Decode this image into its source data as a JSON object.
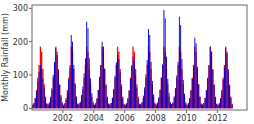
{
  "chart_data": {
    "type": "bar",
    "ylabel": "Monthly Rainfall (mm)",
    "xlim": [
      2000.0,
      2013.92
    ],
    "ylim": [
      -5,
      310
    ],
    "xticks": [
      2002,
      2004,
      2006,
      2008,
      2010,
      2012
    ],
    "yticks": [
      0,
      100,
      200,
      300
    ],
    "x": [
      2000,
      2000.0833333333333,
      2000.1666666666667,
      2000.25,
      2000.3333333333333,
      2000.4166666666667,
      2000.5,
      2000.5833333333333,
      2000.6666666666667,
      2000.75,
      2000.8333333333333,
      2000.9166666666667,
      2001,
      2001.0833333333333,
      2001.1666666666667,
      2001.25,
      2001.3333333333333,
      2001.4166666666667,
      2001.5,
      2001.5833333333333,
      2001.6666666666667,
      2001.75,
      2001.8333333333333,
      2001.9166666666667,
      2002,
      2002.0833333333333,
      2002.1666666666667,
      2002.25,
      2002.3333333333333,
      2002.4166666666667,
      2002.5,
      2002.5833333333333,
      2002.6666666666667,
      2002.75,
      2002.8333333333333,
      2002.9166666666667,
      2003,
      2003.0833333333333,
      2003.1666666666667,
      2003.25,
      2003.3333333333333,
      2003.4166666666667,
      2003.5,
      2003.5833333333333,
      2003.6666666666667,
      2003.75,
      2003.8333333333333,
      2003.9166666666667,
      2004,
      2004.0833333333333,
      2004.1666666666667,
      2004.25,
      2004.3333333333333,
      2004.4166666666667,
      2004.5,
      2004.5833333333333,
      2004.6666666666667,
      2004.75,
      2004.8333333333333,
      2004.9166666666667,
      2005,
      2005.0833333333333,
      2005.1666666666667,
      2005.25,
      2005.3333333333333,
      2005.4166666666667,
      2005.5,
      2005.5833333333333,
      2005.6666666666667,
      2005.75,
      2005.8333333333333,
      2005.9166666666667,
      2006,
      2006.0833333333333,
      2006.1666666666667,
      2006.25,
      2006.3333333333333,
      2006.4166666666667,
      2006.5,
      2006.5833333333333,
      2006.6666666666667,
      2006.75,
      2006.8333333333333,
      2006.9166666666667,
      2007,
      2007.0833333333333,
      2007.1666666666667,
      2007.25,
      2007.3333333333333,
      2007.4166666666667,
      2007.5,
      2007.5833333333333,
      2007.6666666666667,
      2007.75,
      2007.8333333333333,
      2007.9166666666667,
      2008,
      2008.0833333333333,
      2008.1666666666667,
      2008.25,
      2008.3333333333333,
      2008.4166666666667,
      2008.5,
      2008.5833333333333,
      2008.6666666666667,
      2008.75,
      2008.8333333333333,
      2008.9166666666667,
      2009,
      2009.0833333333333,
      2009.1666666666667,
      2009.25,
      2009.3333333333333,
      2009.4166666666667,
      2009.5,
      2009.5833333333333,
      2009.6666666666667,
      2009.75,
      2009.8333333333333,
      2009.9166666666667,
      2010,
      2010.0833333333333,
      2010.1666666666667,
      2010.25,
      2010.3333333333333,
      2010.4166666666667,
      2010.5,
      2010.5833333333333,
      2010.6666666666667,
      2010.75,
      2010.8333333333333,
      2010.9166666666667,
      2011,
      2011.0833333333333,
      2011.1666666666667,
      2011.25,
      2011.3333333333333,
      2011.4166666666667,
      2011.5,
      2011.5833333333333,
      2011.6666666666667,
      2011.75,
      2011.8333333333333,
      2011.9166666666667,
      2012,
      2012.0833333333333,
      2012.1666666666667,
      2012.25,
      2012.3333333333333,
      2012.4166666666667,
      2012.5,
      2012.5833333333333,
      2012.6666666666667,
      2012.75,
      2012.8333333333333,
      2012.9166666666667
    ],
    "series": [
      {
        "color": "#0000cc",
        "values": [
          10,
          15,
          30,
          50,
          80,
          110,
          130,
          120,
          90,
          60,
          30,
          15,
          12,
          18,
          35,
          60,
          100,
          140,
          180,
          160,
          110,
          70,
          40,
          18,
          8,
          12,
          25,
          45,
          85,
          120,
          220,
          200,
          130,
          75,
          35,
          12,
          15,
          20,
          40,
          65,
          105,
          150,
          260,
          240,
          150,
          90,
          45,
          20,
          10,
          14,
          28,
          55,
          95,
          130,
          200,
          185,
          120,
          68,
          32,
          14,
          12,
          16,
          32,
          58,
          98,
          138,
          160,
          148,
          108,
          65,
          30,
          12,
          9,
          13,
          27,
          52,
          88,
          125,
          155,
          140,
          100,
          62,
          28,
          10,
          14,
          19,
          38,
          63,
          102,
          145,
          238,
          220,
          140,
          82,
          42,
          17,
          11,
          17,
          33,
          56,
          92,
          132,
          295,
          270,
          155,
          88,
          46,
          19,
          13,
          18,
          36,
          61,
          99,
          140,
          275,
          250,
          148,
          85,
          44,
          18,
          10,
          15,
          30,
          53,
          88,
          126,
          212,
          195,
          125,
          72,
          35,
          14,
          11,
          16,
          31,
          54,
          90,
          128,
          185,
          170,
          115,
          70,
          33,
          13,
          10,
          14,
          29,
          51,
          86,
          122,
          180,
          165,
          112,
          68,
          31,
          12
        ]
      },
      {
        "color": "#ff0000",
        "values": [
          11,
          16,
          31,
          55,
          92,
          130,
          185,
          170,
          118,
          72,
          35,
          14,
          11,
          16,
          31,
          55,
          92,
          130,
          185,
          170,
          118,
          72,
          35,
          14,
          11,
          16,
          31,
          55,
          92,
          130,
          185,
          170,
          118,
          72,
          35,
          14,
          11,
          16,
          31,
          55,
          92,
          130,
          185,
          170,
          118,
          72,
          35,
          14,
          11,
          16,
          31,
          55,
          92,
          130,
          185,
          170,
          118,
          72,
          35,
          14,
          11,
          16,
          31,
          55,
          92,
          130,
          185,
          170,
          118,
          72,
          35,
          14,
          11,
          16,
          31,
          55,
          92,
          130,
          185,
          170,
          118,
          72,
          35,
          14,
          11,
          16,
          31,
          55,
          92,
          130,
          185,
          170,
          118,
          72,
          35,
          14,
          11,
          16,
          31,
          55,
          92,
          130,
          185,
          170,
          118,
          72,
          35,
          14,
          11,
          16,
          31,
          55,
          92,
          130,
          185,
          170,
          118,
          72,
          35,
          14,
          11,
          16,
          31,
          55,
          92,
          130,
          185,
          170,
          118,
          72,
          35,
          14,
          11,
          16,
          31,
          55,
          92,
          130,
          185,
          170,
          118,
          72,
          35,
          14,
          11,
          16,
          31,
          55,
          92,
          130,
          185,
          170,
          118,
          72,
          35,
          14
        ]
      }
    ]
  }
}
